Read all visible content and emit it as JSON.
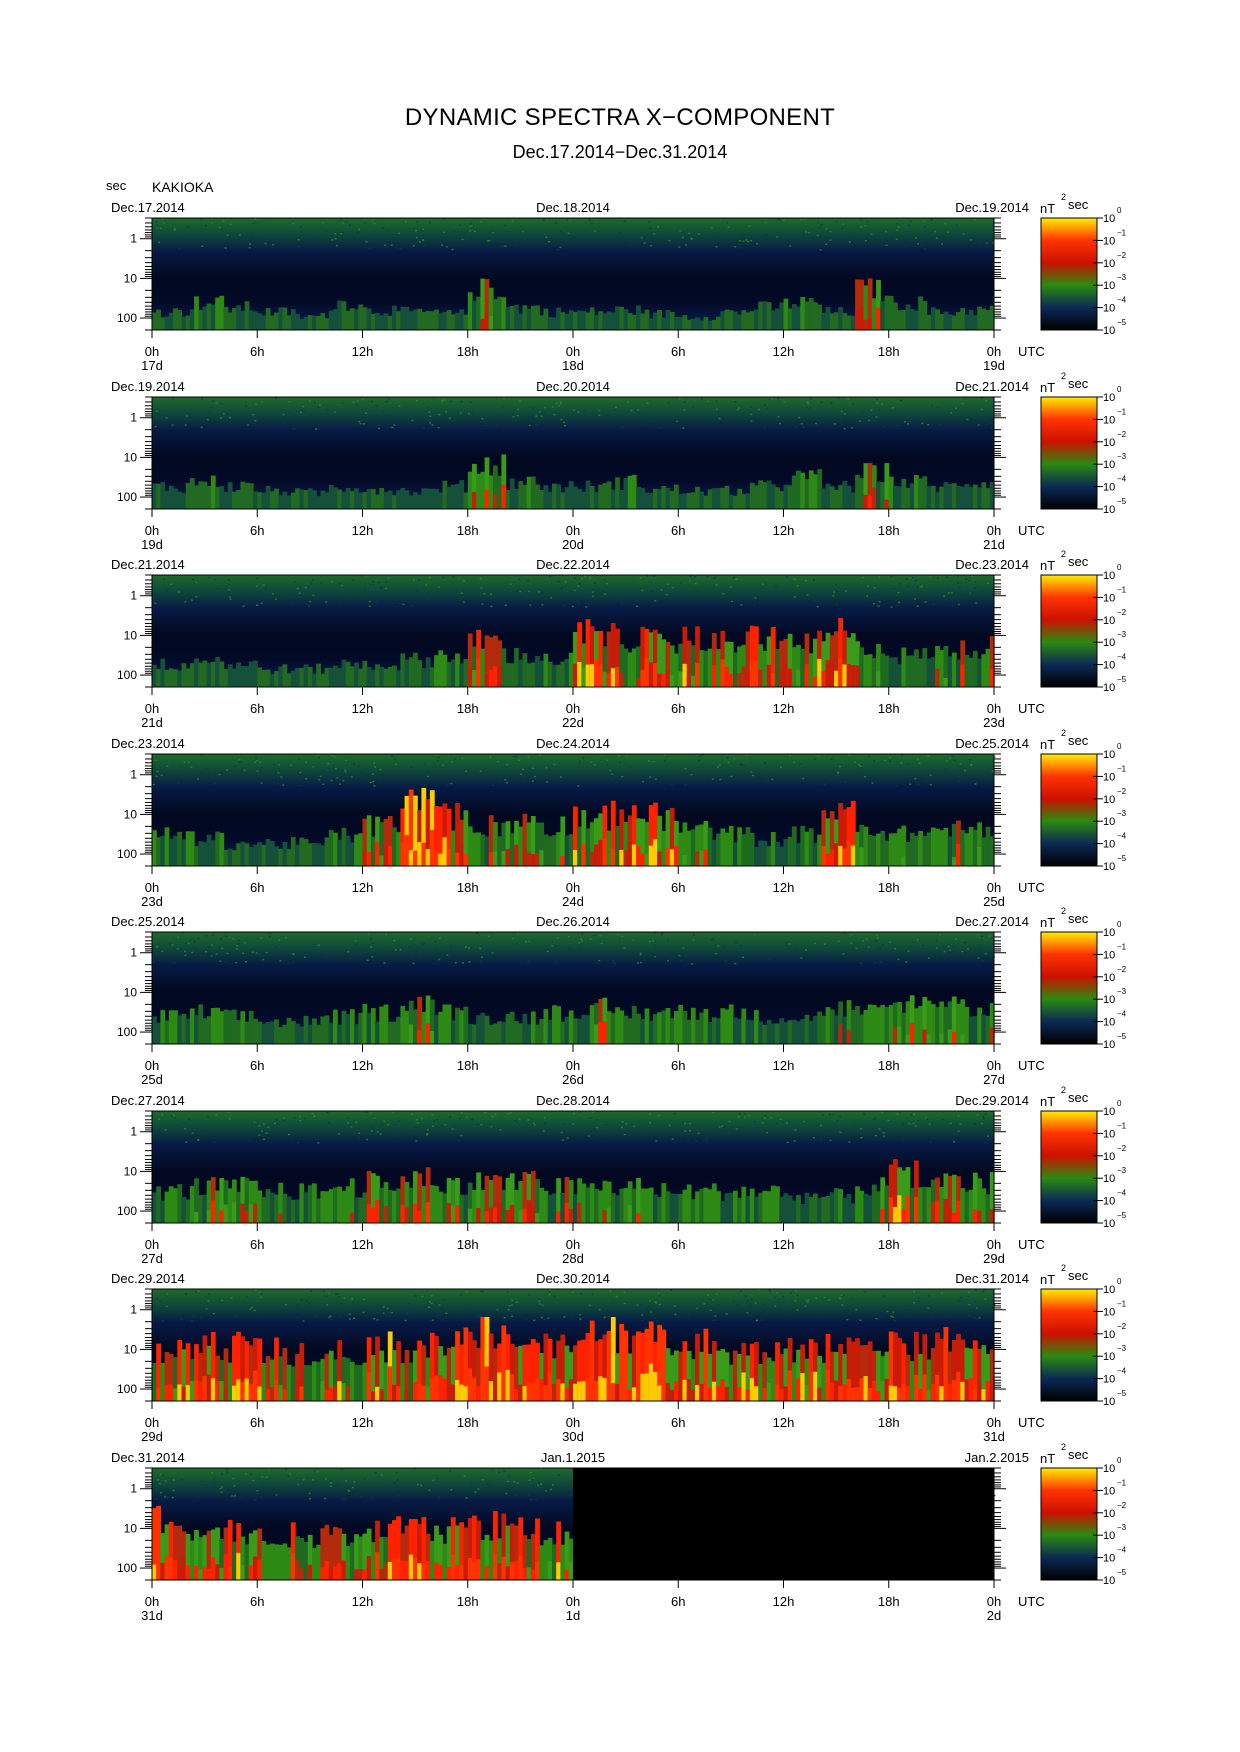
{
  "title": "DYNAMIC SPECTRA X−COMPONENT",
  "subtitle": "Dec.17.2014−Dec.31.2014",
  "y_unit": "sec",
  "station": "KAKIOKA",
  "colorbar": {
    "unit_base": "nT",
    "unit_sup": "2",
    "unit_tail": "sec",
    "ticks": [
      {
        "base": "10",
        "exp": "0"
      },
      {
        "base": "10",
        "exp": "−1"
      },
      {
        "base": "10",
        "exp": "−2"
      },
      {
        "base": "10",
        "exp": "−3"
      },
      {
        "base": "10",
        "exp": "−4"
      },
      {
        "base": "10",
        "exp": "−5"
      }
    ],
    "colors": [
      "#ffee00",
      "#ff3300",
      "#cc1100",
      "#2a8a10",
      "#0a2a55",
      "#000000"
    ]
  },
  "y_ticks": [
    "1",
    "10",
    "100"
  ],
  "x_tick_labels": [
    "0h",
    "6h",
    "12h",
    "18h",
    "0h",
    "6h",
    "12h",
    "18h",
    "0h"
  ],
  "utc_label": "UTC",
  "chart_data": {
    "type": "heatmap",
    "title": "DYNAMIC SPECTRA X−COMPONENT",
    "ylabel": "sec",
    "y_scale": "log",
    "ylim": [
      0.3,
      200
    ],
    "color_scale": "log",
    "color_range": [
      1e-05,
      1
    ],
    "color_unit": "nT^2 sec",
    "panels": [
      {
        "start_label": "Dec.17.2014",
        "mid_label": "Dec.18.2014",
        "end_label": "Dec.19.2014",
        "days": [
          "17d",
          "18d",
          "19d"
        ],
        "activity": [
          0.2,
          0.3,
          0.25,
          0.2,
          0.15,
          0.3,
          0.22,
          0.2,
          0.18,
          0.45,
          0.25,
          0.2,
          0.2,
          0.22,
          0.18,
          0.15,
          0.2,
          0.25,
          0.3,
          0.2,
          0.45,
          0.3,
          0.2,
          0.22
        ]
      },
      {
        "start_label": "Dec.19.2014",
        "mid_label": "Dec.20.2014",
        "end_label": "Dec.21.2014",
        "days": [
          "19d",
          "20d",
          "21d"
        ],
        "activity": [
          0.25,
          0.3,
          0.25,
          0.2,
          0.18,
          0.25,
          0.22,
          0.2,
          0.25,
          0.5,
          0.3,
          0.25,
          0.25,
          0.3,
          0.22,
          0.2,
          0.2,
          0.25,
          0.35,
          0.25,
          0.4,
          0.3,
          0.25,
          0.3
        ]
      },
      {
        "start_label": "Dec.21.2014",
        "mid_label": "Dec.22.2014",
        "end_label": "Dec.23.2014",
        "days": [
          "21d",
          "22d",
          "23d"
        ],
        "activity": [
          0.25,
          0.3,
          0.25,
          0.2,
          0.2,
          0.25,
          0.25,
          0.3,
          0.35,
          0.5,
          0.35,
          0.3,
          0.6,
          0.55,
          0.5,
          0.55,
          0.5,
          0.55,
          0.5,
          0.6,
          0.45,
          0.35,
          0.4,
          0.45
        ]
      },
      {
        "start_label": "Dec.23.2014",
        "mid_label": "Dec.24.2014",
        "end_label": "Dec.25.2014",
        "days": [
          "23d",
          "24d",
          "25d"
        ],
        "activity": [
          0.35,
          0.3,
          0.25,
          0.25,
          0.25,
          0.35,
          0.45,
          0.7,
          0.55,
          0.45,
          0.5,
          0.45,
          0.55,
          0.6,
          0.55,
          0.4,
          0.35,
          0.3,
          0.35,
          0.6,
          0.4,
          0.35,
          0.4,
          0.4
        ]
      },
      {
        "start_label": "Dec.25.2014",
        "mid_label": "Dec.26.2014",
        "end_label": "Dec.27.2014",
        "days": [
          "25d",
          "26d",
          "27d"
        ],
        "activity": [
          0.3,
          0.35,
          0.3,
          0.25,
          0.25,
          0.3,
          0.35,
          0.5,
          0.35,
          0.3,
          0.3,
          0.35,
          0.4,
          0.35,
          0.35,
          0.35,
          0.35,
          0.3,
          0.3,
          0.4,
          0.35,
          0.45,
          0.45,
          0.4
        ]
      },
      {
        "start_label": "Dec.27.2014",
        "mid_label": "Dec.28.2014",
        "end_label": "Dec.29.2014",
        "days": [
          "27d",
          "28d",
          "29d"
        ],
        "activity": [
          0.35,
          0.4,
          0.4,
          0.35,
          0.35,
          0.4,
          0.45,
          0.5,
          0.45,
          0.45,
          0.45,
          0.4,
          0.4,
          0.4,
          0.35,
          0.35,
          0.35,
          0.35,
          0.3,
          0.3,
          0.4,
          0.55,
          0.5,
          0.45
        ]
      },
      {
        "start_label": "Dec.29.2014",
        "mid_label": "Dec.30.2014",
        "end_label": "Dec.31.2014",
        "days": [
          "29d",
          "30d",
          "31d"
        ],
        "activity": [
          0.55,
          0.6,
          0.6,
          0.55,
          0.55,
          0.55,
          0.6,
          0.6,
          0.65,
          0.75,
          0.65,
          0.6,
          0.7,
          0.75,
          0.7,
          0.65,
          0.55,
          0.55,
          0.55,
          0.6,
          0.6,
          0.6,
          0.65,
          0.6
        ]
      },
      {
        "start_label": "Dec.31.2014",
        "mid_label": "Jan.1.2015",
        "end_label": "Jan.2.2015",
        "days": [
          "31d",
          "1d",
          "2d"
        ],
        "no_data_after_fraction": 0.5,
        "activity": [
          0.65,
          0.6,
          0.55,
          0.5,
          0.5,
          0.5,
          0.55,
          0.55,
          0.55,
          0.6,
          0.55,
          0.55,
          0,
          0,
          0,
          0,
          0,
          0,
          0,
          0,
          0,
          0,
          0,
          0
        ]
      }
    ]
  }
}
